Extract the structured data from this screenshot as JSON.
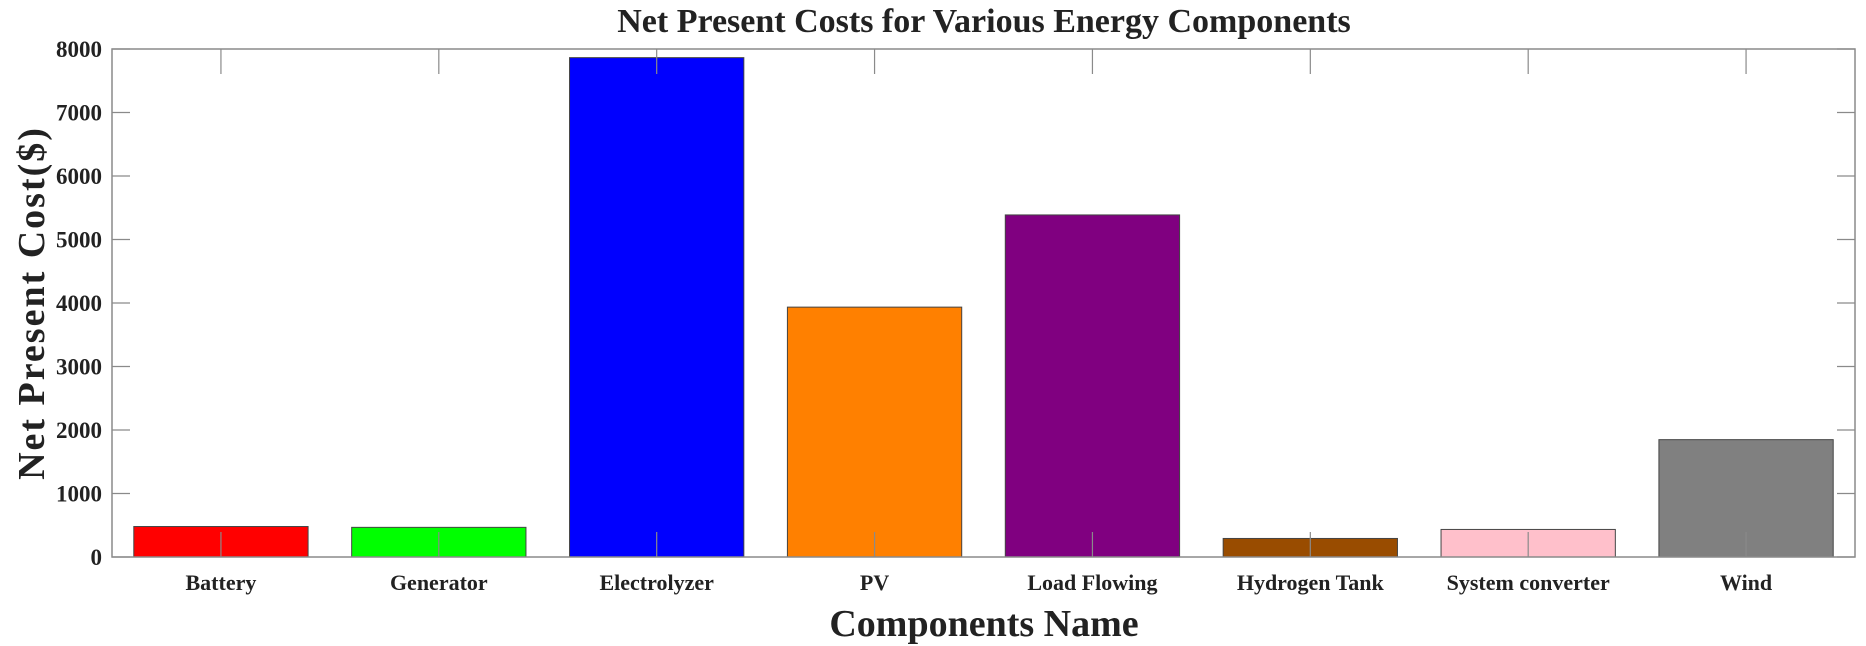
{
  "chart_data": {
    "type": "bar",
    "title": "Net Present Costs for Various Energy Components",
    "xlabel": "Components Name",
    "ylabel": "Net Present Cost($)",
    "categories": [
      "Battery",
      "Generator",
      "Electrolyzer",
      "PV",
      "Load Flowing",
      "Hydrogen Tank",
      "System converter",
      "Wind"
    ],
    "values": [
      480,
      467,
      7864,
      3935,
      5387,
      292,
      434,
      1848
    ],
    "colors": [
      "#ff0000",
      "#00ff00",
      "#0000ff",
      "#ff8000",
      "#800080",
      "#994c00",
      "#ffc0cb",
      "#808080"
    ],
    "ylim": [
      0,
      8000
    ],
    "yticks": [
      0,
      1000,
      2000,
      3000,
      4000,
      5000,
      6000,
      7000,
      8000
    ],
    "grid": false,
    "legend": "none"
  }
}
